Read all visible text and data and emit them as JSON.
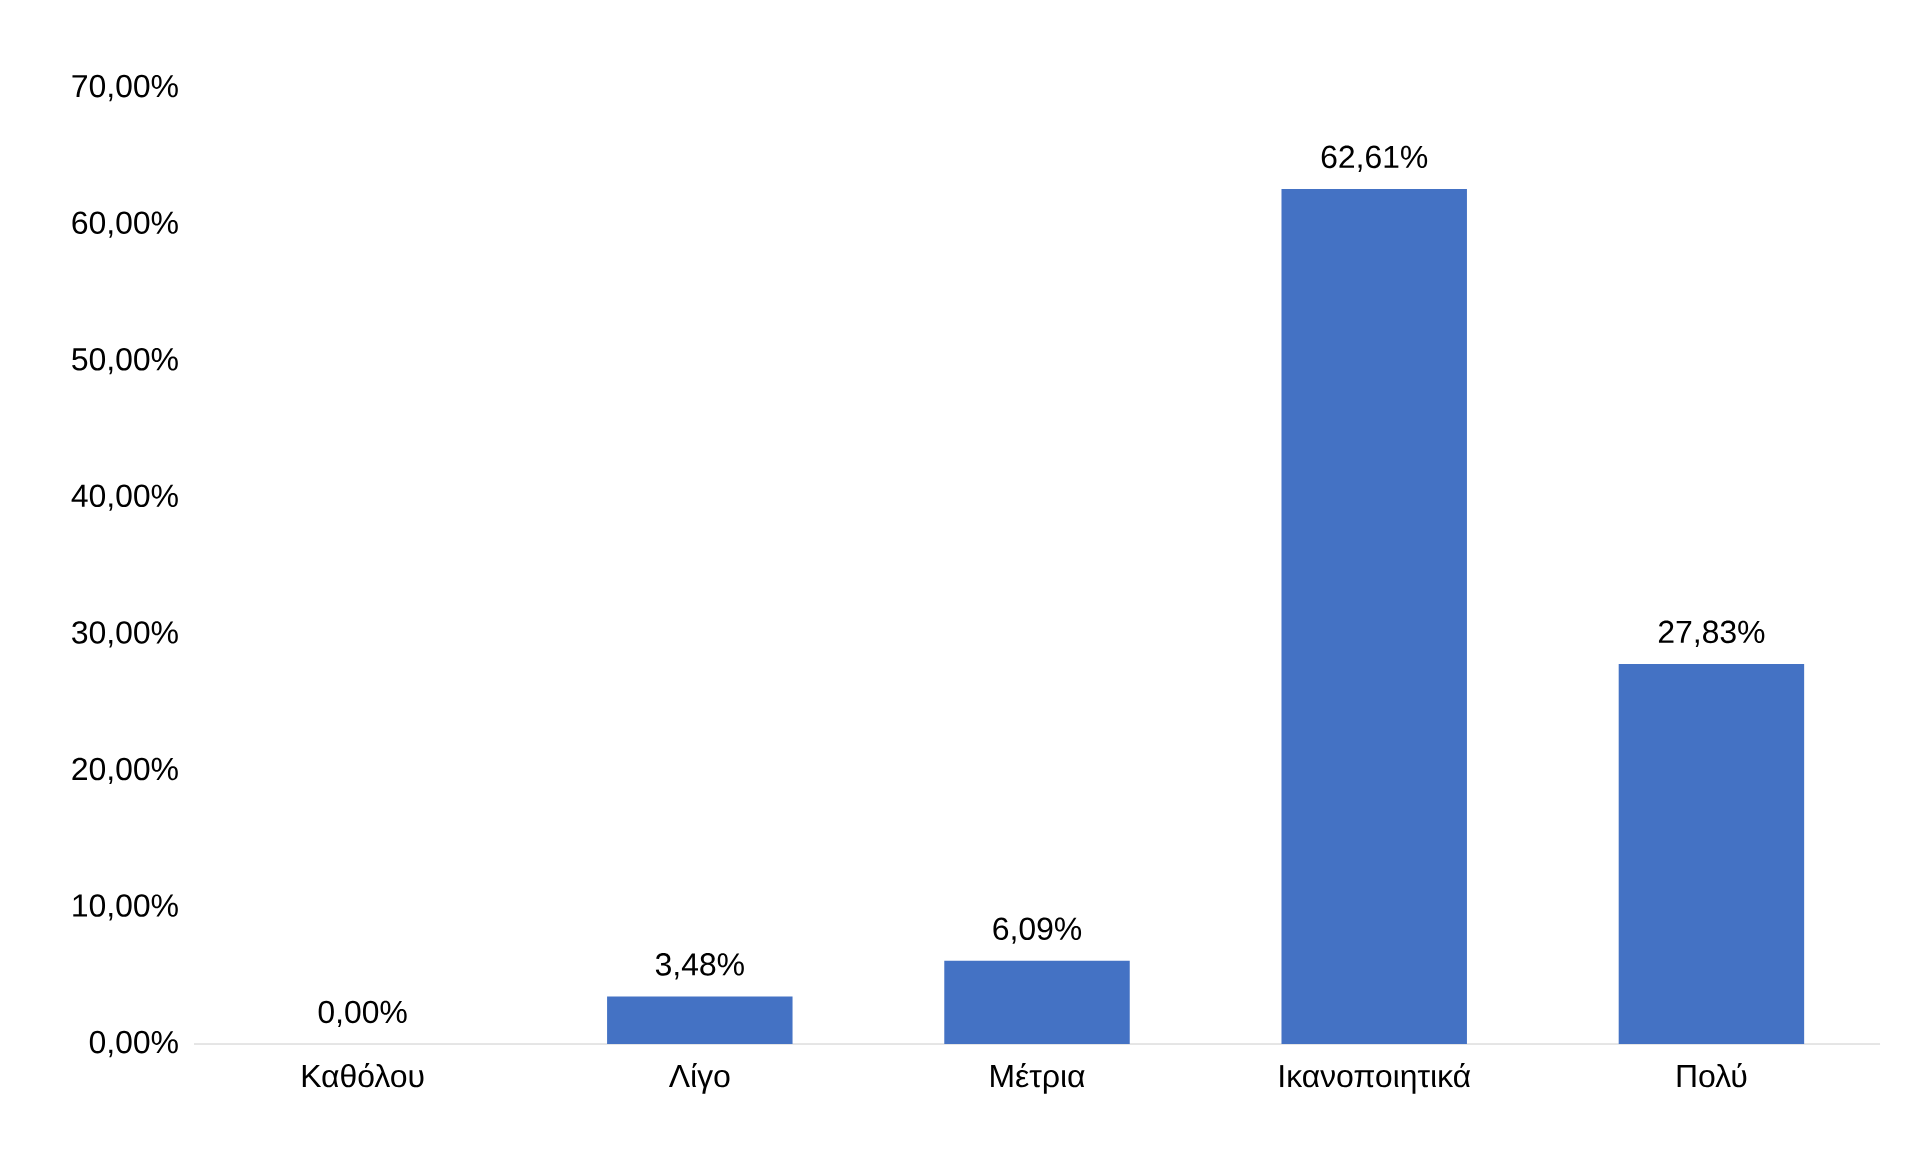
{
  "chart_data": {
    "type": "bar",
    "categories": [
      "Καθόλου",
      "Λίγο",
      "Μέτρια",
      "Ικανοποιητικά",
      "Πολύ"
    ],
    "values": [
      0,
      3.48,
      6.09,
      62.61,
      27.83
    ],
    "value_labels": [
      "0,00%",
      "3,48%",
      "6,09%",
      "62,61%",
      "27,83%"
    ],
    "color": "#4472c4",
    "ylim": [
      0,
      70
    ],
    "yticks": [
      {
        "value": 0,
        "label": "0,00%"
      },
      {
        "value": 10,
        "label": "10,00%"
      },
      {
        "value": 20,
        "label": "20,00%"
      },
      {
        "value": 30,
        "label": "30,00%"
      },
      {
        "value": 40,
        "label": "40,00%"
      },
      {
        "value": 50,
        "label": "50,00%"
      },
      {
        "value": 60,
        "label": "60,00%"
      },
      {
        "value": 70,
        "label": "70,00%"
      }
    ]
  }
}
